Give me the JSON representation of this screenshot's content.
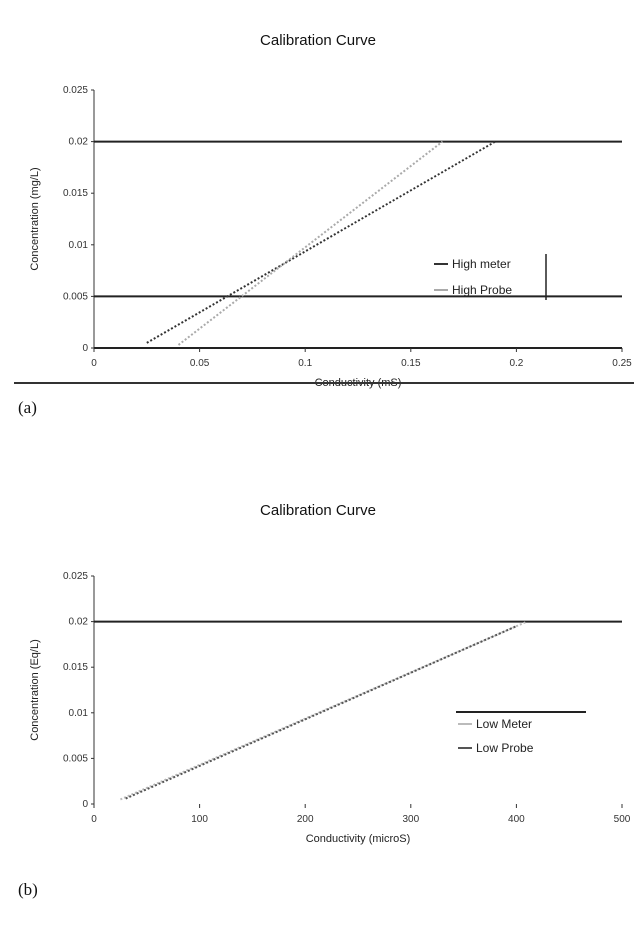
{
  "labels": {
    "a": "(a)",
    "b": "(b)"
  },
  "chart_data": [
    {
      "type": "line",
      "title": "Calibration Curve",
      "xlabel": "Conductivity (mS)",
      "ylabel": "Concentration (mg/L)",
      "xlim": [
        0,
        0.25
      ],
      "ylim": [
        0,
        0.025
      ],
      "xticks": [
        "0",
        "0.05",
        "0.1",
        "0.15",
        "0.2",
        "0.25"
      ],
      "yticks": [
        "0",
        "0.005",
        "0.01",
        "0.015",
        "0.02",
        "0.025"
      ],
      "grid": "major y gridlines at 0, 0.005, 0.02",
      "legend": "right",
      "series": [
        {
          "name": "High meter",
          "color": "#333333",
          "style": "dotted",
          "x": [
            0.025,
            0.19
          ],
          "y": [
            0.0005,
            0.02
          ]
        },
        {
          "name": "High Probe",
          "color": "#aaaaaa",
          "style": "dotted",
          "x": [
            0.04,
            0.165
          ],
          "y": [
            0.0003,
            0.02
          ]
        }
      ]
    },
    {
      "type": "line",
      "title": "Calibration Curve",
      "xlabel": "Conductivity (microS)",
      "ylabel": "Concentration (Eq/L)",
      "xlim": [
        0,
        500
      ],
      "ylim": [
        0,
        0.025
      ],
      "xticks": [
        "0",
        "100",
        "200",
        "300",
        "400",
        "500"
      ],
      "yticks": [
        "0",
        "0.005",
        "0.01",
        "0.015",
        "0.02",
        "0.025"
      ],
      "grid": "major y gridline at 0.02",
      "legend": "right",
      "series": [
        {
          "name": "Low Meter",
          "color": "#bbbbbb",
          "style": "dotted",
          "x": [
            25,
            410
          ],
          "y": [
            0.0005,
            0.02
          ]
        },
        {
          "name": "Low Probe",
          "color": "#555555",
          "style": "dotted",
          "x": [
            30,
            400
          ],
          "y": [
            0.0006,
            0.0195
          ]
        }
      ]
    }
  ]
}
